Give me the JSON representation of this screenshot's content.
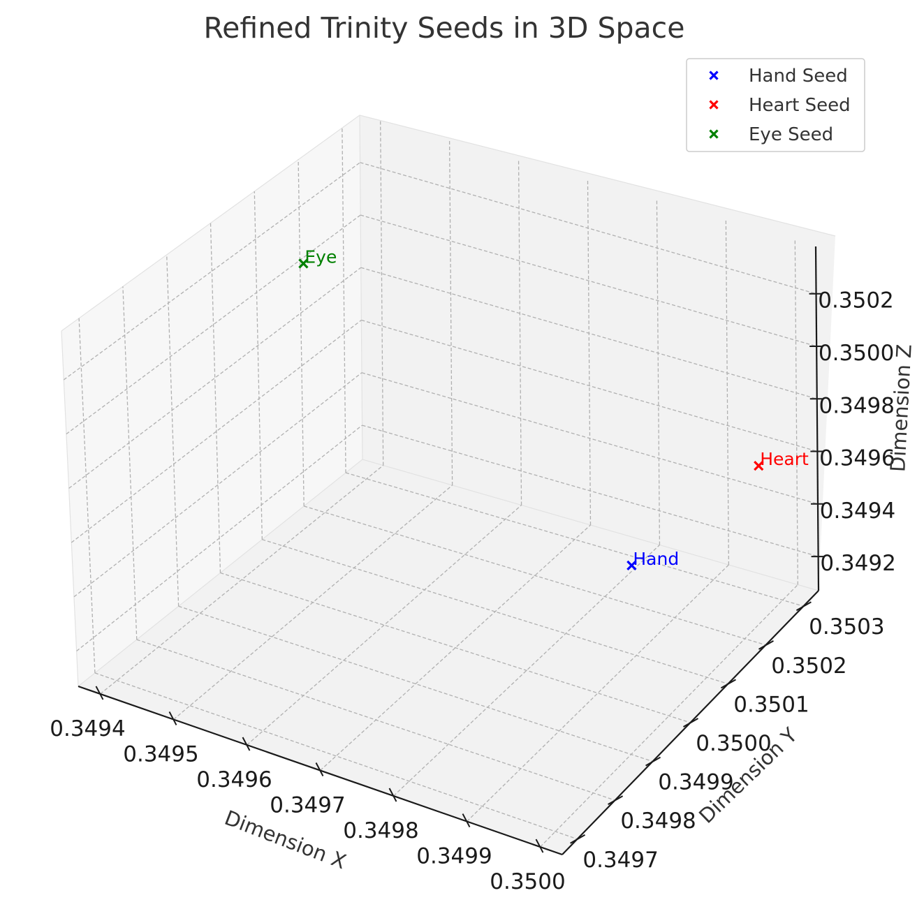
{
  "chart_data": {
    "type": "scatter",
    "title": "Refined Trinity Seeds in 3D Space",
    "xlabel": "Dimension X",
    "ylabel": "Dimension Y",
    "zlabel": "Dimension Z",
    "x_ticks": [
      "0.3494",
      "0.3495",
      "0.3496",
      "0.3497",
      "0.3498",
      "0.3499",
      "0.3500"
    ],
    "y_ticks": [
      "0.3497",
      "0.3498",
      "0.3499",
      "0.3500",
      "0.3501",
      "0.3502",
      "0.3503"
    ],
    "z_ticks": [
      "0.3492",
      "0.3494",
      "0.3496",
      "0.3498",
      "0.3500",
      "0.3502"
    ],
    "xlim": [
      0.34937,
      0.35003
    ],
    "ylim": [
      0.34966,
      0.35034
    ],
    "zlim": [
      0.34907,
      0.35038
    ],
    "grid": true,
    "legend_position": "top-right",
    "series": [
      {
        "name": "Hand Seed",
        "label": "Hand",
        "color": "#0000ff",
        "marker": "x",
        "x": 0.34997,
        "y": 0.34997,
        "z": 0.34965
      },
      {
        "name": "Heart Seed",
        "label": "Heart",
        "color": "#ff0000",
        "marker": "x",
        "x": 0.34999,
        "y": 0.35026,
        "z": 0.34963
      },
      {
        "name": "Eye Seed",
        "label": "Eye",
        "color": "#008000",
        "marker": "x",
        "x": 0.3494,
        "y": 0.35016,
        "z": 0.35006
      }
    ]
  }
}
